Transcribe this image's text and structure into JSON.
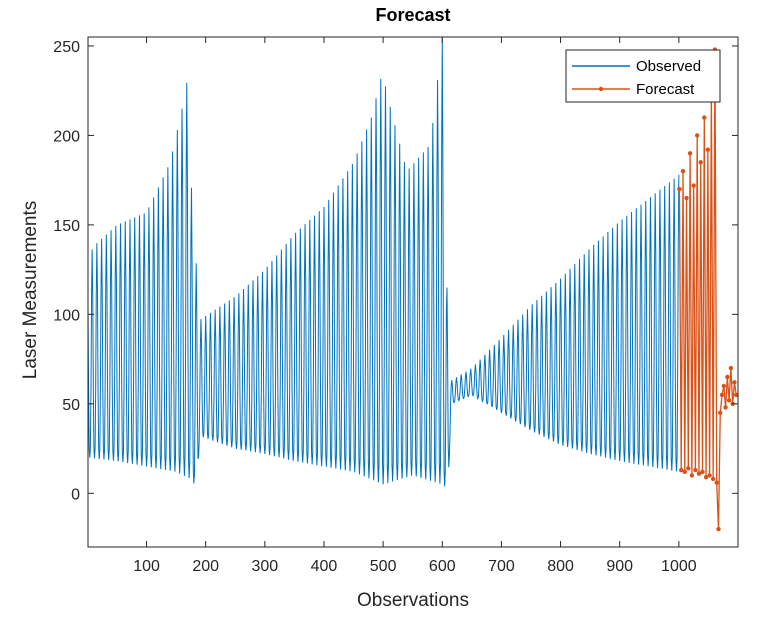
{
  "chart_data": {
    "type": "line",
    "title": "Forecast",
    "xlabel": "Observations",
    "ylabel": "Laser Measurements",
    "xlim": [
      1,
      1100
    ],
    "ylim": [
      -30,
      255
    ],
    "xticks": [
      100,
      200,
      300,
      400,
      500,
      600,
      700,
      800,
      900,
      1000
    ],
    "yticks": [
      0,
      50,
      100,
      150,
      200,
      250
    ],
    "xtick_labels": [
      "100",
      "200",
      "300",
      "400",
      "500",
      "600",
      "700",
      "800",
      "900",
      "1000"
    ],
    "ytick_labels": [
      "0",
      "50",
      "100",
      "150",
      "200",
      "250"
    ],
    "grid": false,
    "legend_position": "top-right",
    "colors": {
      "observed": "#0072BD",
      "forecast": "#D95319"
    },
    "series": [
      {
        "name": "Observed",
        "style": "line",
        "peak_envelope": [
          [
            1,
            130
          ],
          [
            10,
            138
          ],
          [
            50,
            150
          ],
          [
            100,
            157
          ],
          [
            140,
            185
          ],
          [
            160,
            215
          ],
          [
            170,
            233
          ],
          [
            178,
            150
          ],
          [
            185,
            125
          ],
          [
            190,
            97
          ],
          [
            250,
            110
          ],
          [
            300,
            125
          ],
          [
            350,
            145
          ],
          [
            400,
            160
          ],
          [
            450,
            185
          ],
          [
            480,
            210
          ],
          [
            500,
            237
          ],
          [
            505,
            225
          ],
          [
            540,
            180
          ],
          [
            580,
            195
          ],
          [
            600,
            255
          ],
          [
            610,
            80
          ],
          [
            615,
            63
          ],
          [
            650,
            70
          ],
          [
            700,
            87
          ],
          [
            750,
            105
          ],
          [
            800,
            120
          ],
          [
            850,
            137
          ],
          [
            900,
            152
          ],
          [
            950,
            165
          ],
          [
            1000,
            178
          ]
        ],
        "trough_envelope": [
          [
            1,
            20
          ],
          [
            50,
            18
          ],
          [
            100,
            15
          ],
          [
            150,
            12
          ],
          [
            175,
            8
          ],
          [
            185,
            3
          ],
          [
            190,
            32
          ],
          [
            250,
            25
          ],
          [
            300,
            22
          ],
          [
            350,
            18
          ],
          [
            400,
            15
          ],
          [
            450,
            12
          ],
          [
            500,
            5
          ],
          [
            550,
            10
          ],
          [
            600,
            5
          ],
          [
            610,
            2
          ],
          [
            615,
            50
          ],
          [
            650,
            55
          ],
          [
            700,
            45
          ],
          [
            750,
            35
          ],
          [
            800,
            27
          ],
          [
            850,
            22
          ],
          [
            900,
            18
          ],
          [
            950,
            15
          ],
          [
            1000,
            12
          ]
        ]
      },
      {
        "name": "Forecast",
        "style": "line-marker",
        "x": [
          1001,
          1004,
          1007,
          1010,
          1013,
          1016,
          1019,
          1022,
          1025,
          1028,
          1031,
          1034,
          1037,
          1040,
          1043,
          1046,
          1049,
          1052,
          1055,
          1058,
          1061,
          1064,
          1067,
          1070,
          1073,
          1076,
          1079,
          1082,
          1085,
          1088,
          1091,
          1094,
          1097
        ],
        "y": [
          170,
          13,
          180,
          12,
          165,
          14,
          190,
          10,
          172,
          13,
          200,
          11,
          185,
          12,
          210,
          9,
          192,
          10,
          225,
          8,
          248,
          6,
          -20,
          45,
          55,
          60,
          48,
          65,
          52,
          70,
          50,
          62,
          55
        ]
      }
    ]
  }
}
